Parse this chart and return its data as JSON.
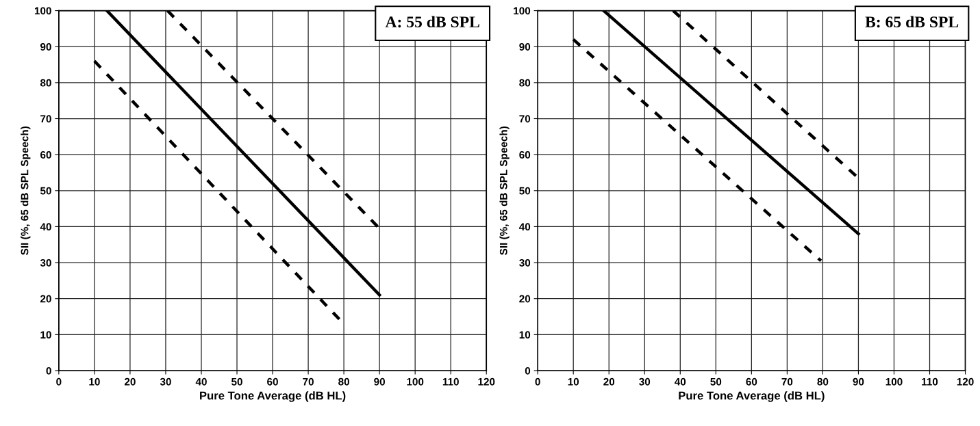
{
  "chart_data": [
    {
      "type": "line",
      "title": "A: 55 dB SPL",
      "xlabel": "Pure Tone Average (dB HL)",
      "ylabel": "SII (%, 65 dB SPL Speech)",
      "xlim": [
        0,
        120
      ],
      "ylim": [
        0,
        100
      ],
      "xticks": [
        0,
        10,
        20,
        30,
        40,
        50,
        60,
        70,
        80,
        90,
        100,
        110,
        120
      ],
      "yticks": [
        0,
        10,
        20,
        30,
        40,
        50,
        60,
        70,
        80,
        90,
        100
      ],
      "grid": true,
      "series": [
        {
          "color": "#000000",
          "line_style": "solid",
          "x": [
            13.5,
            90
          ],
          "values": [
            100,
            21
          ]
        },
        {
          "color": "#000000",
          "line_style": "dashed",
          "x": [
            30.5,
            89.5
          ],
          "values": [
            100,
            40
          ]
        },
        {
          "color": "#000000",
          "line_style": "dashed",
          "x": [
            10,
            79
          ],
          "values": [
            86,
            14
          ]
        }
      ]
    },
    {
      "type": "line",
      "title": "B: 65 dB SPL",
      "xlabel": "Pure Tone Average (dB HL)",
      "ylabel": "SII (%, 65 dB SPL Speech)",
      "xlim": [
        0,
        120
      ],
      "ylim": [
        0,
        100
      ],
      "xticks": [
        0,
        10,
        20,
        30,
        40,
        50,
        60,
        70,
        80,
        90,
        100,
        110,
        120
      ],
      "yticks": [
        0,
        10,
        20,
        30,
        40,
        50,
        60,
        70,
        80,
        90,
        100
      ],
      "grid": true,
      "series": [
        {
          "color": "#000000",
          "line_style": "solid",
          "x": [
            18.5,
            90
          ],
          "values": [
            100,
            38
          ]
        },
        {
          "color": "#000000",
          "line_style": "dashed",
          "x": [
            38,
            90
          ],
          "values": [
            100,
            53.5
          ]
        },
        {
          "color": "#000000",
          "line_style": "dashed",
          "x": [
            10,
            79.5
          ],
          "values": [
            92,
            30.5
          ]
        }
      ]
    }
  ]
}
